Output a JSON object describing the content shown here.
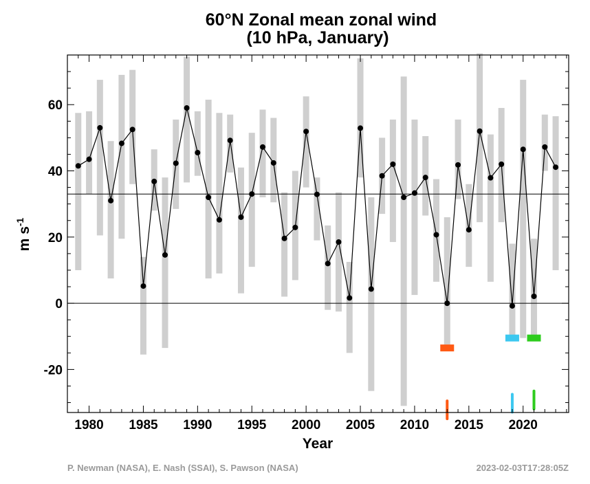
{
  "chart_data": {
    "type": "line",
    "title": "60°N Zonal mean zonal wind",
    "subtitle": "(10 hPa, January)",
    "xlabel": "Year",
    "ylabel_main": "m s",
    "ylabel_sup": "-1",
    "xlim": [
      1978,
      2024.2
    ],
    "ylim": [
      -33,
      75
    ],
    "x_ticks": [
      1980,
      1985,
      1990,
      1995,
      2000,
      2005,
      2010,
      2015,
      2020
    ],
    "y_ticks": [
      -20,
      0,
      20,
      40,
      60
    ],
    "x": [
      1979,
      1980,
      1981,
      1982,
      1983,
      1984,
      1985,
      1986,
      1987,
      1988,
      1989,
      1990,
      1991,
      1992,
      1993,
      1994,
      1995,
      1996,
      1997,
      1998,
      1999,
      2000,
      2001,
      2002,
      2003,
      2004,
      2005,
      2006,
      2007,
      2008,
      2009,
      2010,
      2011,
      2012,
      2013,
      2014,
      2015,
      2016,
      2017,
      2018,
      2019,
      2020,
      2021,
      2022,
      2023
    ],
    "series": [
      {
        "name": "January mean",
        "values": [
          41.5,
          43.5,
          53,
          31,
          48.3,
          52.5,
          5.2,
          36.8,
          14.6,
          42.3,
          59,
          45.5,
          32,
          25.2,
          49.2,
          26,
          33,
          47.2,
          42.4,
          19.6,
          22.9,
          51.9,
          32.9,
          12,
          18.5,
          1.6,
          52.9,
          4.3,
          38.5,
          42,
          32,
          33.3,
          38,
          20.7,
          0,
          41.8,
          22.2,
          52,
          37.9,
          42,
          -0.8,
          46.5,
          2.1,
          47.2,
          41.1
        ]
      }
    ],
    "range_min": [
      10,
      33,
      20.5,
      7.5,
      19.5,
      36,
      -15.5,
      28,
      -13.5,
      28.5,
      36.5,
      38.5,
      7.5,
      9,
      39.5,
      3,
      11,
      32,
      30.5,
      2,
      7,
      35,
      19,
      -2,
      -2.5,
      -15,
      38,
      -26.5,
      27,
      18.5,
      -31,
      2.5,
      26.5,
      6.5,
      -12.5,
      31.5,
      11,
      24.5,
      6.5,
      24.5,
      -10,
      -10.5,
      -10.5,
      40,
      10
    ],
    "range_max": [
      57.5,
      58,
      67.5,
      49,
      69,
      70.5,
      14,
      46.5,
      38,
      55.5,
      74.5,
      58,
      61.5,
      57.5,
      57,
      41,
      51.5,
      58.5,
      56,
      33.5,
      40,
      62.5,
      38,
      23.5,
      33.5,
      12.5,
      74,
      32,
      50,
      55.5,
      68.5,
      55.5,
      50.5,
      37.5,
      26,
      55.5,
      36,
      75.5,
      51,
      59,
      18,
      67.5,
      19.5,
      57,
      56.5
    ],
    "horizontal_lines": [
      {
        "name": "climatology mean",
        "value": 33
      },
      {
        "name": "zero",
        "value": 0
      }
    ],
    "colored_marks": [
      {
        "year": 2013,
        "level": -13.5,
        "color": "#ff5a14",
        "kind": "bar"
      },
      {
        "year": 2019,
        "level": -10.5,
        "color": "#3cc8f0",
        "kind": "bar"
      },
      {
        "year": 2021,
        "level": -10.5,
        "color": "#2ecc1e",
        "kind": "bar"
      },
      {
        "year": 2013,
        "level": -32,
        "color": "#ff5a14",
        "kind": "stroke"
      },
      {
        "year": 2019,
        "level": -30,
        "color": "#3cc8f0",
        "kind": "stroke"
      },
      {
        "year": 2021,
        "level": -29,
        "color": "#2ecc1e",
        "kind": "stroke"
      }
    ],
    "colors": {
      "range_bar": "#cfcfcf",
      "line": "#000000",
      "marker": "#000000"
    }
  },
  "footer": {
    "credit_left": "P. Newman (NASA), E. Nash (SSAI), S. Pawson (NASA)",
    "credit_right": "2023-02-03T17:28:05Z"
  }
}
